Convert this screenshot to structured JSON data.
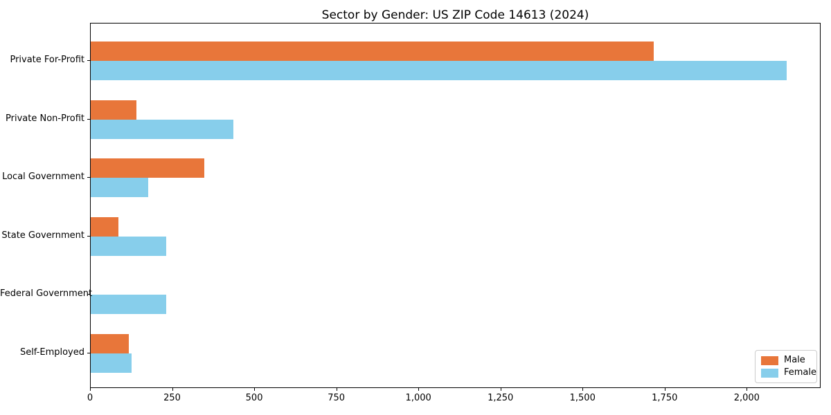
{
  "chart_data": {
    "type": "bar",
    "orientation": "horizontal",
    "title": "Sector by Gender: US ZIP Code 14613 (2024)",
    "xlabel": "",
    "ylabel": "",
    "categories": [
      "Private For-Profit",
      "Private Non-Profit",
      "Local Government",
      "State Government",
      "Federal Government",
      "Self-Employed"
    ],
    "series": [
      {
        "name": "Male",
        "color": "#e8763a",
        "values": [
          1715,
          140,
          345,
          85,
          0,
          115
        ]
      },
      {
        "name": "Female",
        "color": "#87ceeb",
        "values": [
          2120,
          435,
          175,
          230,
          230,
          125
        ]
      }
    ],
    "xlim": [
      0,
      2225
    ],
    "xticks": [
      0,
      250,
      500,
      750,
      1000,
      1250,
      1500,
      1750,
      2000
    ],
    "xtick_labels": [
      "0",
      "250",
      "500",
      "750",
      "1,000",
      "1,250",
      "1,500",
      "1,750",
      "2,000"
    ],
    "grid": false,
    "legend_position": "lower right",
    "plot_border_color": "#000000",
    "background_color": "#ffffff"
  }
}
